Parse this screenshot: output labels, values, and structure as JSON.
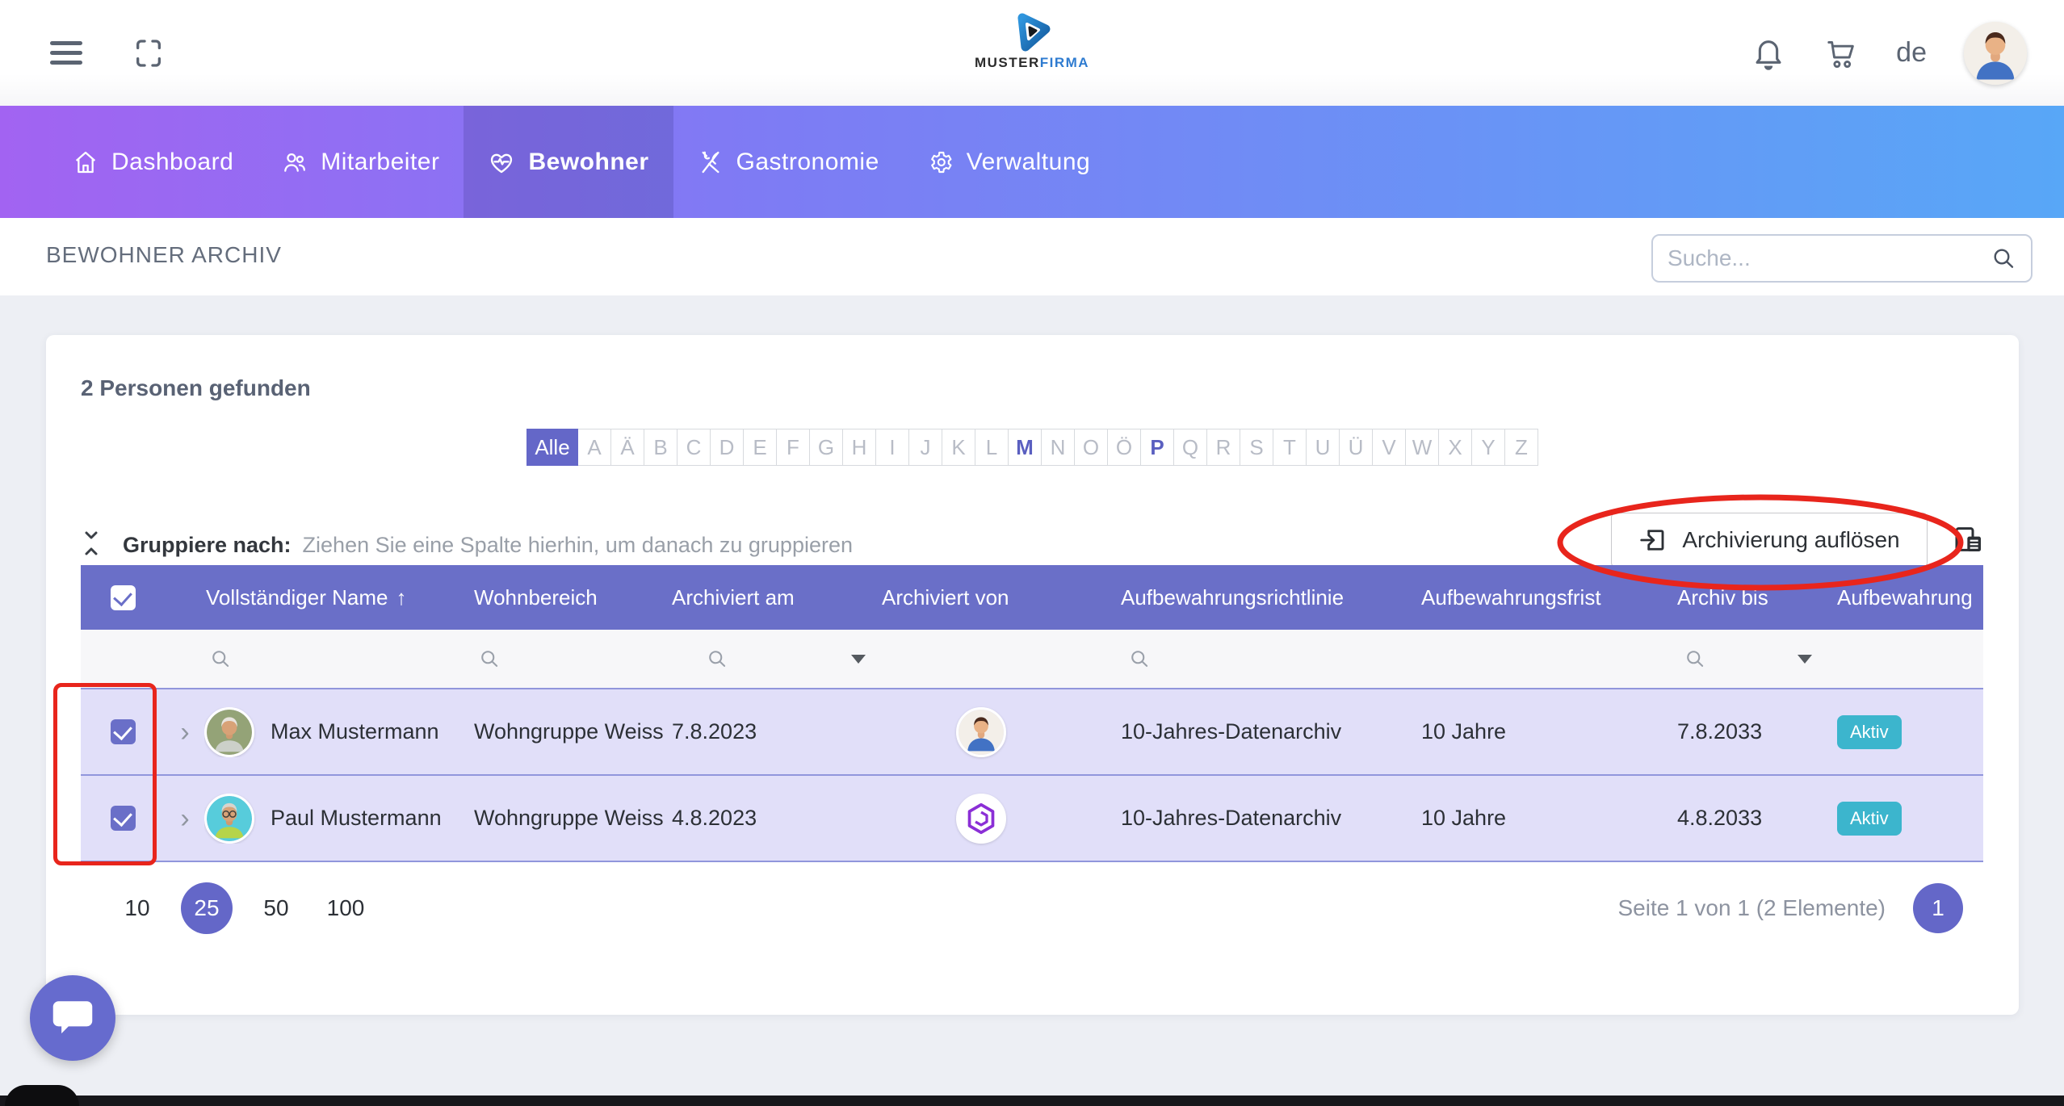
{
  "topbar": {
    "logo_main": "MUSTER",
    "logo_accent": "FIRMA",
    "language": "de"
  },
  "nav": {
    "items": [
      {
        "label": "Dashboard",
        "icon": "home-icon",
        "active": false
      },
      {
        "label": "Mitarbeiter",
        "icon": "people-icon",
        "active": false
      },
      {
        "label": "Bewohner",
        "icon": "heart-pulse-icon",
        "active": true
      },
      {
        "label": "Gastronomie",
        "icon": "utensils-icon",
        "active": false
      },
      {
        "label": "Verwaltung",
        "icon": "gear-icon",
        "active": false
      }
    ]
  },
  "page": {
    "title": "BEWOHNER ARCHIV",
    "search_placeholder": "Suche..."
  },
  "toolbar": {
    "results_count": "2 Personen gefunden",
    "alphabet": {
      "all_label": "Alle",
      "letters": [
        "A",
        "Ä",
        "B",
        "C",
        "D",
        "E",
        "F",
        "G",
        "H",
        "I",
        "J",
        "K",
        "L",
        "M",
        "N",
        "O",
        "Ö",
        "P",
        "Q",
        "R",
        "S",
        "T",
        "U",
        "Ü",
        "V",
        "W",
        "X",
        "Y",
        "Z"
      ],
      "enabled_letters": [
        "M",
        "P"
      ],
      "selected": "Alle"
    },
    "group_label": "Gruppiere nach:",
    "group_hint": "Ziehen Sie eine Spalte hierhin, um danach zu gruppieren",
    "unarchive_button_label": "Archivierung auflösen"
  },
  "table": {
    "select_all_checked": true,
    "sort_indicator": "↑",
    "columns": [
      {
        "label": "Vollständiger Name",
        "sorted": "asc"
      },
      {
        "label": "Wohnbereich"
      },
      {
        "label": "Archiviert am"
      },
      {
        "label": "Archiviert von"
      },
      {
        "label": "Aufbewahrungsrichtlinie"
      },
      {
        "label": "Aufbewahrungsfrist"
      },
      {
        "label": "Archiv bis"
      },
      {
        "label": "Aufbewahrung"
      }
    ],
    "rows": [
      {
        "selected": true,
        "name": "Max Mustermann",
        "photo_icon": "elderly-man-photo-green-bg",
        "wohnbereich": "Wohngruppe Weiss",
        "archiviert_am": "7.8.2023",
        "archiviert_von_icon": "blue-shirt-user-avatar",
        "richtlinie": "10-Jahres-Datenarchiv",
        "frist": "10 Jahre",
        "archiv_bis": "7.8.2033",
        "status": "Aktiv"
      },
      {
        "selected": true,
        "name": "Paul Mustermann",
        "photo_icon": "elderly-man-photo-teal-bg",
        "wohnbereich": "Wohngruppe Weiss",
        "archiviert_am": "4.8.2023",
        "archiviert_von_icon": "purple-hexagon-logo",
        "richtlinie": "10-Jahres-Datenarchiv",
        "frist": "10 Jahre",
        "archiv_bis": "4.8.2033",
        "status": "Aktiv"
      }
    ]
  },
  "pagination": {
    "page_sizes": [
      "10",
      "25",
      "50",
      "100"
    ],
    "selected_size": "25",
    "info": "Seite 1 von 1 (2 Elemente)",
    "current_page": "1"
  },
  "colors": {
    "accent_indigo": "#6467c8",
    "table_header": "#6a6fc8",
    "row_bg": "#e1dff9",
    "status_badge": "#3cb5cd",
    "annotation_red": "#e8251c",
    "nav_gradient_left": "#a263f2",
    "nav_gradient_right": "#58a7f7"
  }
}
